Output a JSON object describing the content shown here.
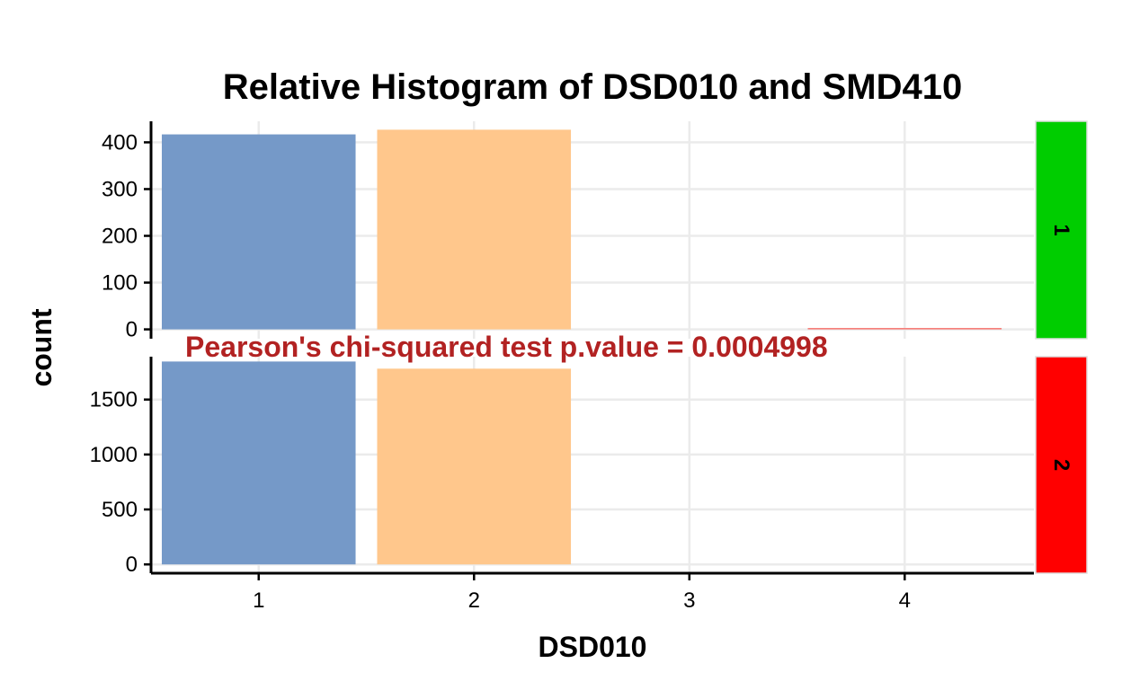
{
  "chart_data": {
    "type": "bar",
    "title": "Relative Histogram of DSD010 and SMD410",
    "xlabel": "DSD010",
    "ylabel": "count",
    "x_ticks": [
      "1",
      "2",
      "3",
      "4"
    ],
    "xlim": [
      0.5,
      4.6
    ],
    "facet_variable": "SMD410",
    "annotation": "Pearson's chi-squared test p.value = 0.0004998",
    "annotation_color": "#B22222",
    "grid": true,
    "legend": "none",
    "bar_colors": {
      "1": "#7599C8",
      "2": "#FFC78C",
      "4": "#F7756F"
    },
    "panels": [
      {
        "facet": "1",
        "strip_color": "#00CD00",
        "ylim": [
          -20,
          445
        ],
        "y_ticks": [
          0,
          100,
          200,
          300,
          400
        ],
        "bars": [
          {
            "x": 1,
            "value": 417
          },
          {
            "x": 2,
            "value": 427
          },
          {
            "x": 4,
            "value": 1
          }
        ]
      },
      {
        "facet": "2",
        "strip_color": "#FF0000",
        "ylim": [
          -80,
          1890
        ],
        "y_ticks": [
          0,
          500,
          1000,
          1500
        ],
        "bars": [
          {
            "x": 1,
            "value": 1846
          },
          {
            "x": 2,
            "value": 1781
          }
        ]
      }
    ]
  }
}
